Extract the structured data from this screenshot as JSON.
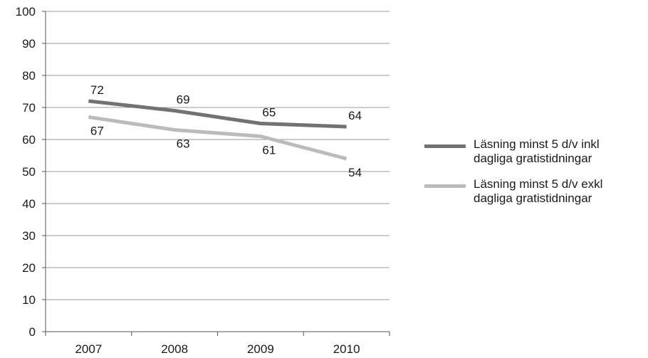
{
  "chart_data": {
    "type": "line",
    "categories": [
      "2007",
      "2008",
      "2009",
      "2010"
    ],
    "ylim": [
      0,
      100
    ],
    "yticks": [
      "0",
      "10",
      "20",
      "30",
      "40",
      "50",
      "60",
      "70",
      "80",
      "90",
      "100"
    ],
    "grid": true,
    "legend_position": "right",
    "series": [
      {
        "name": "Läsning minst 5 d/v inkl dagliga gratistidningar",
        "values": [
          72,
          69,
          65,
          64
        ],
        "color": "#717176"
      },
      {
        "name": "Läsning minst 5 d/v exkl dagliga gratistidningar",
        "values": [
          67,
          63,
          61,
          54
        ],
        "color": "#bbbbbd"
      }
    ]
  }
}
